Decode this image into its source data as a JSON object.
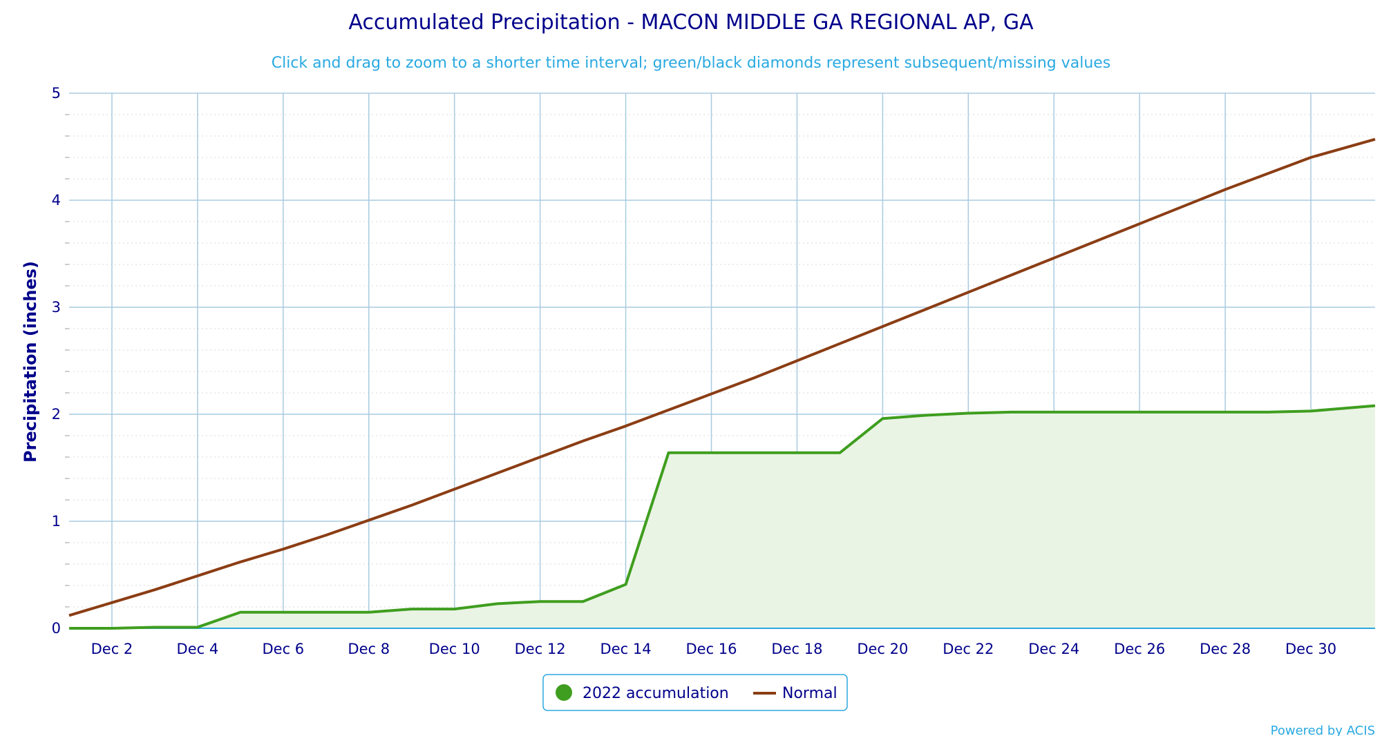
{
  "chart_data": {
    "type": "area",
    "title": "Accumulated Precipitation - MACON MIDDLE GA REGIONAL AP, GA",
    "subtitle": "Click and drag to zoom to a shorter time interval; green/black diamonds represent subsequent/missing values",
    "ylabel": "Precipitation (inches)",
    "xlabel": "",
    "ylim": [
      0,
      5
    ],
    "yticks": [
      0,
      1,
      2,
      3,
      4,
      5
    ],
    "ytick_labels": [
      "0",
      "1",
      "2",
      "3",
      "4",
      "5"
    ],
    "xlim": [
      1,
      31.5
    ],
    "xticks": [
      2,
      4,
      6,
      8,
      10,
      12,
      14,
      16,
      18,
      20,
      22,
      24,
      26,
      28,
      30
    ],
    "xtick_labels": [
      "Dec 2",
      "Dec 4",
      "Dec 6",
      "Dec 8",
      "Dec 10",
      "Dec 12",
      "Dec 14",
      "Dec 16",
      "Dec 18",
      "Dec 20",
      "Dec 22",
      "Dec 24",
      "Dec 26",
      "Dec 28",
      "Dec 30"
    ],
    "grid": true,
    "legend_position": "bottom-center",
    "series": [
      {
        "name": "2022 accumulation",
        "color": "#3f9e1f",
        "fill": "#eaf4e5",
        "x": [
          1,
          2,
          3,
          4,
          5,
          6,
          7,
          8,
          9,
          10,
          11,
          12,
          13,
          14,
          15,
          16,
          17,
          18,
          19,
          20,
          21,
          22,
          23,
          24,
          25,
          26,
          27,
          28,
          29,
          30,
          31.5
        ],
        "values": [
          0.0,
          0.0,
          0.01,
          0.01,
          0.15,
          0.15,
          0.15,
          0.15,
          0.18,
          0.18,
          0.23,
          0.25,
          0.25,
          0.41,
          1.64,
          1.64,
          1.64,
          1.64,
          1.64,
          1.96,
          1.99,
          2.01,
          2.02,
          2.02,
          2.02,
          2.02,
          2.02,
          2.02,
          2.02,
          2.03,
          2.08
        ]
      },
      {
        "name": "Normal",
        "color": "#8b3d14",
        "x": [
          1,
          2,
          3,
          4,
          5,
          6,
          7,
          8,
          9,
          10,
          11,
          12,
          13,
          14,
          15,
          16,
          17,
          18,
          19,
          20,
          21,
          22,
          23,
          24,
          25,
          26,
          27,
          28,
          29,
          30,
          31.5
        ],
        "values": [
          0.12,
          0.24,
          0.36,
          0.49,
          0.62,
          0.74,
          0.87,
          1.01,
          1.15,
          1.3,
          1.45,
          1.6,
          1.75,
          1.89,
          2.04,
          2.19,
          2.34,
          2.5,
          2.66,
          2.82,
          2.98,
          3.14,
          3.3,
          3.46,
          3.62,
          3.78,
          3.94,
          4.1,
          4.25,
          4.4,
          4.57
        ]
      }
    ]
  },
  "legend": {
    "item1_label": "2022 accumulation",
    "item2_label": "Normal"
  },
  "credit": "Powered by ACIS"
}
